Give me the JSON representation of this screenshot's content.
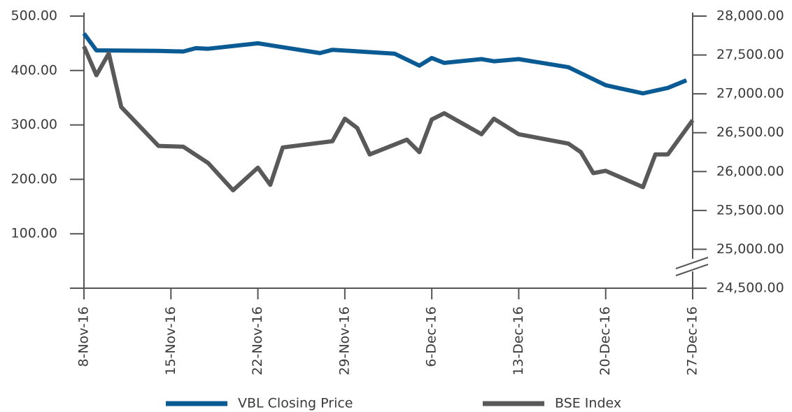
{
  "chart_data": {
    "type": "line",
    "xlim": [
      0,
      49
    ],
    "xticks": [
      {
        "value": 0,
        "label": "8-Nov-16"
      },
      {
        "value": 7,
        "label": "15-Nov-16"
      },
      {
        "value": 14,
        "label": "22-Nov-16"
      },
      {
        "value": 21,
        "label": "29-Nov-16"
      },
      {
        "value": 28,
        "label": "6-Dec-16"
      },
      {
        "value": 35,
        "label": "13-Dec-16"
      },
      {
        "value": 42,
        "label": "20-Dec-16"
      },
      {
        "value": 49,
        "label": "27-Dec-16"
      }
    ],
    "ylim": [
      0,
      500
    ],
    "yticks": [
      {
        "value": 100,
        "label": "100.00"
      },
      {
        "value": 200,
        "label": "200.00"
      },
      {
        "value": 300,
        "label": "300.00"
      },
      {
        "value": 400,
        "label": "400.00"
      },
      {
        "value": 500,
        "label": "500.00"
      }
    ],
    "y2lim": [
      24500,
      28000
    ],
    "y2ticks": [
      {
        "value": 24500,
        "label": "24,500.00"
      },
      {
        "value": 25000,
        "label": "25,000.00"
      },
      {
        "value": 25500,
        "label": "25,500.00"
      },
      {
        "value": 26000,
        "label": "26,000.00"
      },
      {
        "value": 26500,
        "label": "26,500.00"
      },
      {
        "value": 27000,
        "label": "27,000.00"
      },
      {
        "value": 27500,
        "label": "27,500.00"
      },
      {
        "value": 28000,
        "label": "28,000.00"
      }
    ],
    "series": [
      {
        "name": "VBL Closing Price",
        "color": "#0a5a94",
        "x": [
          0,
          1,
          6,
          8,
          9,
          10,
          14,
          19,
          20,
          25,
          27,
          28,
          29,
          32,
          33,
          35,
          39,
          42,
          45,
          47,
          48.5
        ],
        "values": [
          468,
          437,
          436,
          435,
          441,
          440,
          450,
          432,
          438,
          431,
          409,
          423,
          414,
          421,
          417,
          421,
          406,
          373,
          358,
          368,
          382
        ]
      },
      {
        "name": "BSE Index",
        "color": "#595959",
        "axis": "y2",
        "x": [
          0,
          1,
          2,
          3,
          6,
          8,
          10,
          12,
          14,
          15,
          16,
          20,
          21,
          22,
          23,
          26,
          27,
          28,
          29,
          32,
          33,
          35,
          39,
          40,
          41,
          42,
          45,
          46,
          47,
          49
        ],
        "values": [
          27610,
          27240,
          27520,
          26830,
          26330,
          26320,
          26110,
          25760,
          26050,
          25830,
          26310,
          26390,
          26680,
          26560,
          26220,
          26410,
          26250,
          26670,
          26750,
          26480,
          26680,
          26480,
          26360,
          26250,
          25980,
          26010,
          25800,
          26220,
          26220,
          26660
        ]
      }
    ]
  }
}
